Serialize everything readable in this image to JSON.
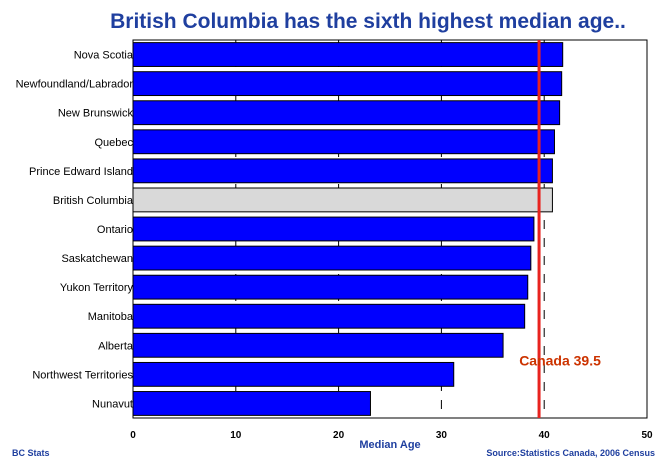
{
  "chart_data": {
    "type": "bar",
    "orientation": "horizontal",
    "title": "British Columbia has the sixth highest median age..",
    "xlabel": "Median Age",
    "ylabel": "",
    "xlim": [
      0,
      50
    ],
    "xticks": [
      0,
      10,
      20,
      30,
      40,
      50
    ],
    "categories": [
      "Nova Scotia",
      "Newfoundland/Labrador",
      "New Brunswick",
      "Quebec",
      "Prince Edward Island",
      "British Columbia",
      "Ontario",
      "Saskatchewan",
      "Yukon Territory",
      "Manitoba",
      "Alberta",
      "Northwest Territories",
      "Nunavut"
    ],
    "values": [
      41.8,
      41.7,
      41.5,
      41.0,
      40.8,
      40.8,
      39.0,
      38.7,
      38.4,
      38.1,
      36.0,
      31.2,
      23.1
    ],
    "highlight": "British Columbia",
    "reference_line": {
      "label": "Canada 39.5",
      "value": 39.5
    },
    "colors": {
      "bar": "#0000ff",
      "highlight_bar": "#d9d9d9",
      "reference_line": "#e8231f",
      "reference_label": "#cc3300",
      "title": "#1f3f9f"
    },
    "grid": "vertical dashed",
    "source": "Source:Statistics Canada, 2006 Census",
    "credit": "BC Stats"
  }
}
